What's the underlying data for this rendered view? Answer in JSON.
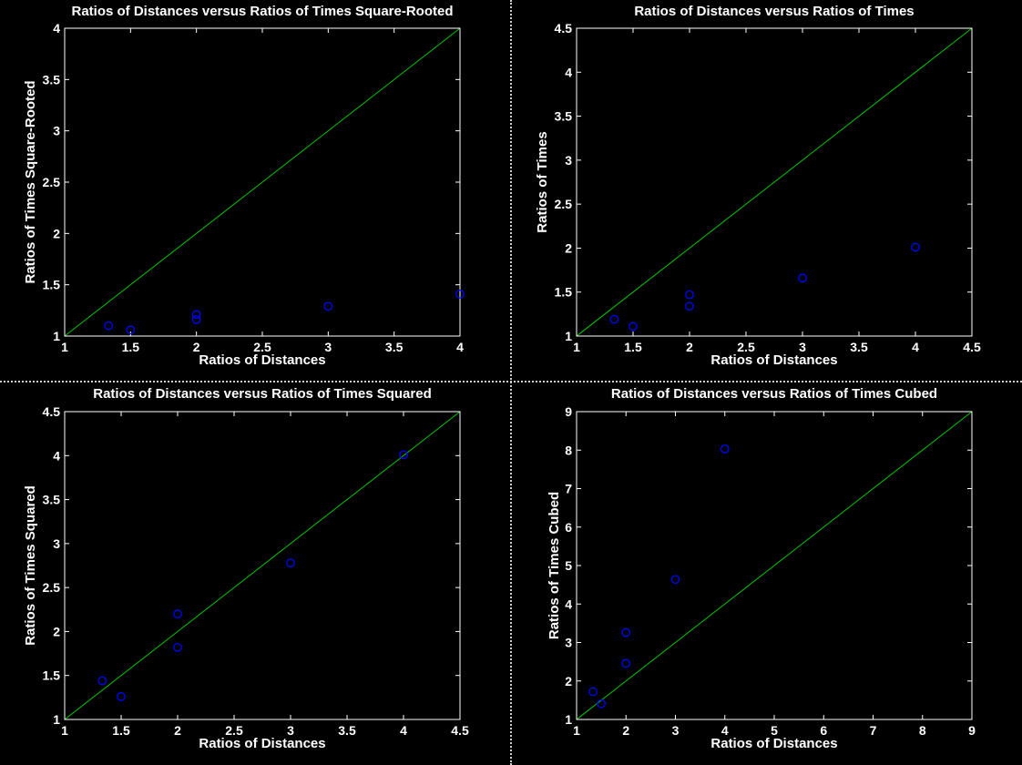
{
  "colors": {
    "background": "#000000",
    "axes": "#ffffff",
    "reference_line": "#00c800",
    "markers": "#0000ff",
    "divider": "#cfcfcf"
  },
  "chart_data": [
    {
      "type": "scatter",
      "title": "Ratios of Distances versus Ratios of Times Square-Rooted",
      "xlabel": "Ratios of Distances",
      "ylabel": "Ratios of Times Square-Rooted",
      "xlim": [
        1,
        4
      ],
      "ylim": [
        1,
        4
      ],
      "xticks": [
        "1",
        "1.5",
        "2",
        "2.5",
        "3",
        "3.5",
        "4"
      ],
      "yticks": [
        "1",
        "1.5",
        "2",
        "2.5",
        "3",
        "3.5",
        "4"
      ],
      "grid": false,
      "series": [
        {
          "marker": "circle",
          "x": [
            1.333,
            1.5,
            2,
            2,
            3,
            4
          ],
          "y": [
            1.1,
            1.06,
            1.21,
            1.16,
            1.29,
            1.41
          ]
        }
      ],
      "reference_line": {
        "x": [
          1,
          4
        ],
        "y": [
          1,
          4
        ]
      }
    },
    {
      "type": "scatter",
      "title": "Ratios of Distances versus Ratios of Times",
      "xlabel": "Ratios of Distances",
      "ylabel": "Ratios of Times",
      "xlim": [
        1,
        4.5
      ],
      "ylim": [
        1,
        4.5
      ],
      "xticks": [
        "1",
        "1.5",
        "2",
        "2.5",
        "3",
        "3.5",
        "4",
        "4.5"
      ],
      "yticks": [
        "1",
        "1.5",
        "2",
        "2.5",
        "3",
        "3.5",
        "4",
        "4.5"
      ],
      "grid": false,
      "series": [
        {
          "marker": "circle",
          "x": [
            1.333,
            1.5,
            2,
            2,
            3,
            4
          ],
          "y": [
            1.19,
            1.11,
            1.47,
            1.34,
            1.66,
            2.01
          ]
        }
      ],
      "reference_line": {
        "x": [
          1,
          4.5
        ],
        "y": [
          1,
          4.5
        ]
      }
    },
    {
      "type": "scatter",
      "title": "Ratios of Distances versus Ratios of Times Squared",
      "xlabel": "Ratios of Distances",
      "ylabel": "Ratios of Times Squared",
      "xlim": [
        1,
        4.5
      ],
      "ylim": [
        1,
        4.5
      ],
      "xticks": [
        "1",
        "1.5",
        "2",
        "2.5",
        "3",
        "3.5",
        "4",
        "4.5"
      ],
      "yticks": [
        "1",
        "1.5",
        "2",
        "2.5",
        "3",
        "3.5",
        "4",
        "4.5"
      ],
      "grid": false,
      "series": [
        {
          "marker": "circle",
          "x": [
            1.333,
            1.5,
            2,
            2,
            3,
            4
          ],
          "y": [
            1.44,
            1.26,
            2.2,
            1.82,
            2.78,
            4.01
          ]
        }
      ],
      "reference_line": {
        "x": [
          1,
          4.5
        ],
        "y": [
          1,
          4.5
        ]
      }
    },
    {
      "type": "scatter",
      "title": "Ratios of Distances versus Ratios of Times Cubed",
      "xlabel": "Ratios of Distances",
      "ylabel": "Ratios of Times Cubed",
      "xlim": [
        1,
        9
      ],
      "ylim": [
        1,
        9
      ],
      "xticks": [
        "1",
        "2",
        "3",
        "4",
        "5",
        "6",
        "7",
        "8",
        "9"
      ],
      "yticks": [
        "1",
        "2",
        "3",
        "4",
        "5",
        "6",
        "7",
        "8",
        "9"
      ],
      "grid": false,
      "series": [
        {
          "marker": "circle",
          "x": [
            1.333,
            1.5,
            2,
            2,
            3,
            4
          ],
          "y": [
            1.72,
            1.41,
            3.26,
            2.46,
            4.64,
            8.03
          ]
        }
      ],
      "reference_line": {
        "x": [
          1,
          9
        ],
        "y": [
          1,
          9
        ]
      }
    }
  ]
}
